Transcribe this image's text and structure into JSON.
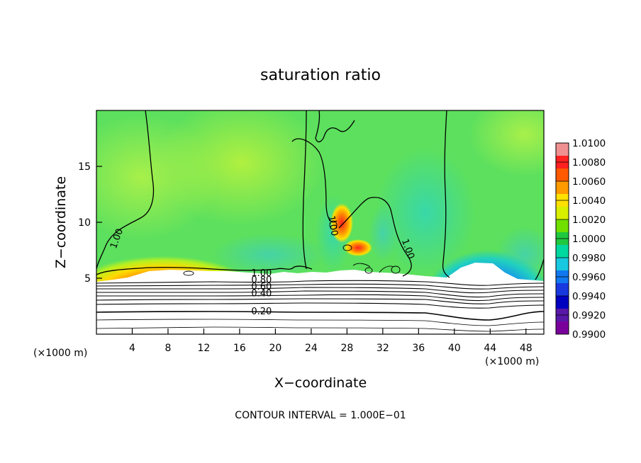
{
  "chart_data": {
    "type": "heatmap",
    "title": "saturation ratio",
    "xlabel": "X−coordinate",
    "ylabel": "Z−coordinate",
    "x_unit_left": "(×1000 m)",
    "x_unit_right": "(×1000 m)",
    "xlim": [
      0,
      50
    ],
    "ylim": [
      0,
      20
    ],
    "x_ticks": [
      4,
      8,
      12,
      16,
      20,
      24,
      28,
      32,
      36,
      40,
      44,
      48
    ],
    "y_ticks": [
      5,
      10,
      15
    ],
    "contour_interval_text": "CONTOUR INTERVAL = 1.000E−01",
    "contour_labels": [
      {
        "text": "1.00",
        "x": 1.8,
        "y": 7.7
      },
      {
        "text": "1.00",
        "x": 26.3,
        "y": 10.6
      },
      {
        "text": "1.00",
        "x": 34.5,
        "y": 8.5
      },
      {
        "text": "1.00",
        "x": 17.3,
        "y": 5.5
      },
      {
        "text": "0.80",
        "x": 17.3,
        "y": 4.9
      },
      {
        "text": "0.60",
        "x": 17.3,
        "y": 4.3
      },
      {
        "text": "0.40",
        "x": 17.3,
        "y": 3.7
      },
      {
        "text": "0.20",
        "x": 17.3,
        "y": 2.1
      }
    ],
    "colorbar": {
      "tick_labels": [
        "1.0100",
        "1.0080",
        "1.0060",
        "1.0040",
        "1.0020",
        "1.0000",
        "0.9980",
        "0.9960",
        "0.9940",
        "0.9920",
        "0.9900"
      ],
      "colors": [
        "#f09090",
        "#ff2020",
        "#ff5a00",
        "#ff9a00",
        "#ffe000",
        "#d8f000",
        "#70e000",
        "#20c840",
        "#00d8a0",
        "#18c8e0",
        "#1078f0",
        "#1838e0",
        "#0000c0",
        "#5818a8",
        "#7a009c"
      ]
    },
    "colors": {
      "background_field": "#5ce05e",
      "ground": "#ffffff",
      "contour": "#000000"
    }
  }
}
